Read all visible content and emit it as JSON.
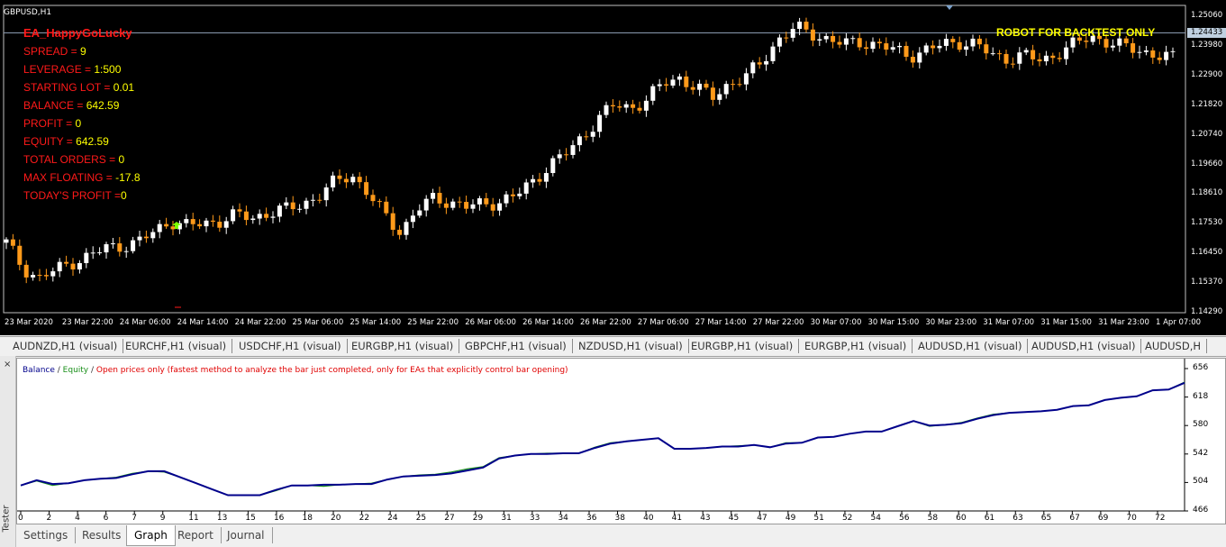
{
  "chart": {
    "symbol_label": "GBPUSD,H1",
    "ea_name": "EA_HappyGoLucky",
    "info_rows": [
      {
        "label": "SPREAD = ",
        "value": "9"
      },
      {
        "label": "LEVERAGE = ",
        "value": "1:500"
      },
      {
        "label": "STARTING LOT = ",
        "value": "0.01"
      },
      {
        "label": "BALANCE = ",
        "value": "642.59"
      },
      {
        "label": "PROFIT = ",
        "value": "0"
      },
      {
        "label": "EQUITY = ",
        "value": "642.59"
      },
      {
        "label": "TOTAL ORDERS = ",
        "value": "0"
      },
      {
        "label": "MAX FLOATING = ",
        "value": "-17.8"
      },
      {
        "label": "TODAY'S PROFIT =",
        "value": "0"
      }
    ],
    "robot_text": "ROBOT FOR BACKTEST ONLY",
    "current_price": "1.24433",
    "price_ticks": [
      "1.25060",
      "1.23980",
      "1.22900",
      "1.21820",
      "1.20740",
      "1.19660",
      "1.18610",
      "1.17530",
      "1.16450",
      "1.15370",
      "1.14290"
    ],
    "time_ticks": [
      "23 Mar 2020",
      "23 Mar 22:00",
      "24 Mar 06:00",
      "24 Mar 14:00",
      "24 Mar 22:00",
      "25 Mar 06:00",
      "25 Mar 14:00",
      "25 Mar 22:00",
      "26 Mar 06:00",
      "26 Mar 14:00",
      "26 Mar 22:00",
      "27 Mar 06:00",
      "27 Mar 14:00",
      "27 Mar 22:00",
      "30 Mar 07:00",
      "30 Mar 15:00",
      "30 Mar 23:00",
      "31 Mar 07:00",
      "31 Mar 15:00",
      "31 Mar 23:00",
      "1 Apr 07:00"
    ],
    "colors": {
      "bull": "#ffffff",
      "bear": "#ff9a1a",
      "background": "#000000",
      "ea_text": "#ff1a1a",
      "value_text": "#ffff00"
    }
  },
  "symbol_tabs": [
    "AUDNZD,H1 (visual)",
    "EURCHF,H1 (visual)",
    "USDCHF,H1 (visual)",
    "EURGBP,H1 (visual)",
    "GBPCHF,H1 (visual)",
    "NZDUSD,H1 (visual)",
    "EURGBP,H1 (visual)",
    "EURGBP,H1 (visual)",
    "AUDUSD,H1 (visual)",
    "AUDUSD,H1 (visual)",
    "AUDUSD,H"
  ],
  "tester": {
    "side_label": "Tester",
    "close_icon": "×",
    "legend": {
      "balance": "Balance",
      "sep1": " / ",
      "equity": "Equity",
      "sep2": " / ",
      "model": "Open prices only (fastest method to analyze the bar just completed, only for EAs that explicitly control bar opening)"
    },
    "y_ticks": [
      "656",
      "618",
      "580",
      "542",
      "504",
      "466"
    ],
    "x_ticks": [
      "0",
      "2",
      "4",
      "6",
      "7",
      "9",
      "11",
      "13",
      "15",
      "16",
      "18",
      "20",
      "22",
      "24",
      "25",
      "27",
      "29",
      "31",
      "33",
      "34",
      "36",
      "38",
      "40",
      "41",
      "43",
      "45",
      "47",
      "49",
      "51",
      "52",
      "54",
      "56",
      "58",
      "60",
      "61",
      "63",
      "65",
      "67",
      "69",
      "70",
      "72"
    ],
    "tabs": [
      {
        "label": "Settings",
        "active": false
      },
      {
        "label": "Results",
        "active": false
      },
      {
        "label": "Graph",
        "active": true
      },
      {
        "label": "Report",
        "active": false
      },
      {
        "label": "Journal",
        "active": false
      }
    ]
  },
  "chart_data": {
    "type": "line",
    "xlabel": "",
    "ylabel": "",
    "ylim": [
      466,
      656
    ],
    "x": [
      0,
      1,
      2,
      3,
      4,
      5,
      6,
      7,
      8,
      9,
      10,
      11,
      12,
      13,
      14,
      15,
      16,
      17,
      18,
      19,
      20,
      21,
      22,
      23,
      24,
      25,
      26,
      27,
      28,
      29,
      30,
      31,
      32,
      33,
      34,
      35,
      36,
      37,
      38,
      39,
      40,
      41,
      42,
      43,
      44,
      45,
      46,
      47,
      48,
      49,
      50,
      51,
      52,
      53,
      54,
      55,
      56,
      57,
      58,
      59,
      60,
      61,
      62,
      63,
      64,
      65,
      66,
      67,
      68,
      69,
      70,
      71,
      72,
      73
    ],
    "series": [
      {
        "name": "Balance",
        "color": "#00008b",
        "values": [
          500,
          507,
          502,
          503,
          507,
          509,
          510,
          515,
          519,
          519,
          511,
          503,
          495,
          487,
          487,
          487,
          494,
          500,
          500,
          501,
          501,
          502,
          502,
          508,
          512,
          513,
          514,
          516,
          520,
          524,
          536,
          540,
          542,
          542,
          543,
          543,
          550,
          556,
          559,
          561,
          563,
          549,
          549,
          550,
          552,
          552,
          554,
          551,
          556,
          557,
          564,
          565,
          569,
          572,
          572,
          579,
          586,
          580,
          581,
          583,
          589,
          594,
          597,
          598,
          599,
          601,
          606,
          607,
          614,
          617,
          619,
          627,
          628,
          637
        ]
      },
      {
        "name": "Equity",
        "color": "#1a8f1a",
        "values": [
          500,
          506,
          500,
          503,
          507,
          509,
          511,
          516,
          519,
          518,
          511,
          503,
          495,
          487,
          487,
          487,
          493,
          500,
          500,
          499,
          501,
          502,
          503,
          508,
          512,
          514,
          515,
          518,
          522,
          525,
          537,
          540,
          542,
          543,
          543,
          543,
          551,
          557,
          559,
          561,
          563,
          549,
          549,
          550,
          552,
          553,
          554,
          551,
          557,
          557,
          564,
          565,
          569,
          572,
          572,
          579,
          586,
          579,
          581,
          584,
          590,
          595,
          597,
          598,
          599,
          601,
          606,
          607,
          614,
          617,
          619,
          627,
          628,
          638
        ]
      }
    ]
  }
}
